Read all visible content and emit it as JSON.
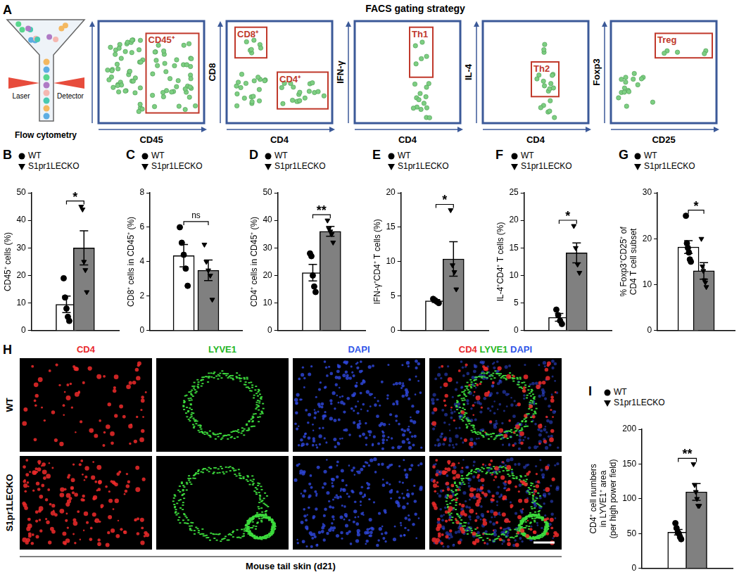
{
  "panel_a": {
    "label": "A",
    "title": "FACS gating strategy",
    "instrument": "Flow cytometry",
    "laser": "Laser",
    "detector": "Detector",
    "plots": [
      {
        "x_label": "CD45",
        "gates": [
          "CD45⁺"
        ]
      },
      {
        "x_label": "CD4",
        "y_label": "CD8",
        "gates": [
          "CD8⁺",
          "CD4⁺"
        ]
      },
      {
        "x_label": "CD4",
        "y_label": "IFN-γ",
        "gates": [
          "Th1"
        ]
      },
      {
        "x_label": "CD4",
        "y_label": "IL-4",
        "gates": [
          "Th2"
        ]
      },
      {
        "x_label": "CD25",
        "y_label": "Foxp3",
        "gates": [
          "Treg"
        ]
      }
    ]
  },
  "chart_data": [
    {
      "type": "bar",
      "panel": "B",
      "y_label": "CD45⁺ cells (%)",
      "ylim": [
        0,
        50
      ],
      "yticks": [
        0,
        10,
        20,
        30,
        40,
        50
      ],
      "grid": false,
      "tick_labels": "y",
      "legend": "top-left",
      "annotations": [
        "*"
      ],
      "series": [
        {
          "name": "WT",
          "color": "#ffffff",
          "marker": "circle",
          "mean": 9.5,
          "sem": 3.0,
          "values": [
            19,
            12,
            8,
            5,
            3.5
          ]
        },
        {
          "name": "S1pr1LECKO",
          "color": "#808080",
          "marker": "triangle_down",
          "mean": 30,
          "sem": 6.2,
          "values": [
            45,
            44,
            25,
            22,
            14
          ]
        }
      ]
    },
    {
      "type": "bar",
      "panel": "C",
      "y_label": "CD8⁺ cells in CD45⁺ (%)",
      "ylim": [
        0,
        8
      ],
      "yticks": [
        0,
        2,
        4,
        6,
        8
      ],
      "grid": false,
      "tick_labels": "y",
      "legend": "top-left",
      "annotations": [
        "ns"
      ],
      "series": [
        {
          "name": "WT",
          "color": "#ffffff",
          "marker": "circle",
          "mean": 4.35,
          "sem": 0.65,
          "values": [
            6.0,
            5.1,
            4.4,
            3.6,
            2.6
          ]
        },
        {
          "name": "S1pr1LECKO",
          "color": "#808080",
          "marker": "triangle_down",
          "mean": 3.5,
          "sem": 0.6,
          "values": [
            5.0,
            4.0,
            3.5,
            3.2,
            1.8
          ]
        }
      ]
    },
    {
      "type": "bar",
      "panel": "D",
      "y_label": "CD4⁺ cells in CD45⁺ (%)",
      "ylim": [
        0,
        50
      ],
      "yticks": [
        0,
        10,
        20,
        30,
        40,
        50
      ],
      "grid": false,
      "tick_labels": "y",
      "legend": "top-left",
      "annotations": [
        "**"
      ],
      "series": [
        {
          "name": "WT",
          "color": "#ffffff",
          "marker": "circle",
          "mean": 21,
          "sem": 3.0,
          "values": [
            28,
            27,
            20,
            16,
            14
          ]
        },
        {
          "name": "S1pr1LECKO",
          "color": "#808080",
          "marker": "triangle_down",
          "mean": 36,
          "sem": 1.8,
          "values": [
            40,
            37,
            36,
            35,
            32
          ]
        }
      ]
    },
    {
      "type": "bar",
      "panel": "E",
      "y_label": "IFN-γ⁺CD4⁺ T cells (%)",
      "ylim": [
        0,
        20
      ],
      "yticks": [
        0,
        5,
        10,
        15,
        20
      ],
      "grid": false,
      "tick_labels": "y",
      "legend": "top-left",
      "annotations": [
        "*"
      ],
      "series": [
        {
          "name": "WT",
          "color": "#ffffff",
          "marker": "circle",
          "mean": 4.3,
          "sem": 0.2,
          "values": [
            4.6,
            4.4,
            4.2,
            4.0
          ]
        },
        {
          "name": "S1pr1LECKO",
          "color": "#808080",
          "marker": "triangle_down",
          "mean": 10.4,
          "sem": 2.5,
          "values": [
            17.5,
            9.5,
            8.5,
            6.0
          ]
        }
      ]
    },
    {
      "type": "bar",
      "panel": "F",
      "y_label": "IL-4⁺CD4⁺ T cells (%)",
      "ylim": [
        0,
        25
      ],
      "yticks": [
        0,
        5,
        10,
        15,
        20,
        25
      ],
      "grid": false,
      "tick_labels": "y",
      "legend": "top-left",
      "annotations": [
        "*"
      ],
      "series": [
        {
          "name": "WT",
          "color": "#ffffff",
          "marker": "circle",
          "mean": 2.4,
          "sem": 0.7,
          "values": [
            3.8,
            2.8,
            1.8,
            1.2
          ]
        },
        {
          "name": "S1pr1LECKO",
          "color": "#808080",
          "marker": "triangle_down",
          "mean": 14.1,
          "sem": 1.8,
          "values": [
            19,
            15,
            12,
            10.5
          ]
        }
      ]
    },
    {
      "type": "bar",
      "panel": "G",
      "y_label": [
        "% Foxp3⁺CD25⁺ of",
        "CD4 T cell subset"
      ],
      "ylim": [
        0,
        30
      ],
      "yticks": [
        0,
        10,
        20,
        30
      ],
      "grid": false,
      "tick_labels": "y",
      "legend": "top-left",
      "annotations": [
        "*"
      ],
      "series": [
        {
          "name": "WT",
          "color": "#ffffff",
          "marker": "circle",
          "mean": 18.2,
          "sem": 1.4,
          "values": [
            25,
            19,
            18,
            17,
            15.5,
            15
          ]
        },
        {
          "name": "S1pr1LECKO",
          "color": "#808080",
          "marker": "triangle_down",
          "mean": 13,
          "sem": 1.8,
          "values": [
            20,
            14,
            13,
            11,
            10.5,
            9.5
          ]
        }
      ]
    },
    {
      "type": "bar",
      "panel": "I",
      "y_label": [
        "CD4⁺ cell numbers",
        "in LYVE1⁺ area",
        "(per high power field)"
      ],
      "ylim": [
        0,
        200
      ],
      "yticks": [
        0,
        50,
        100,
        150,
        200
      ],
      "grid": false,
      "tick_labels": "y",
      "legend": "top-left",
      "annotations": [
        "**"
      ],
      "series": [
        {
          "name": "WT",
          "color": "#ffffff",
          "marker": "circle",
          "mean": 52,
          "sem": 4,
          "values": [
            65,
            58,
            52,
            50,
            45,
            42
          ]
        },
        {
          "name": "S1pr1LECKO",
          "color": "#808080",
          "marker": "triangle_down",
          "mean": 110,
          "sem": 12,
          "values": [
            150,
            120,
            110,
            100,
            90,
            90
          ]
        }
      ]
    }
  ],
  "panel_h": {
    "label": "H",
    "columns": [
      "CD4",
      "LYVE1",
      "DAPI",
      [
        "CD4",
        "LYVE1",
        "DAPI"
      ]
    ],
    "rows": [
      "WT",
      "S1pr1LECKO"
    ],
    "caption": "Mouse tail skin (d21)"
  }
}
